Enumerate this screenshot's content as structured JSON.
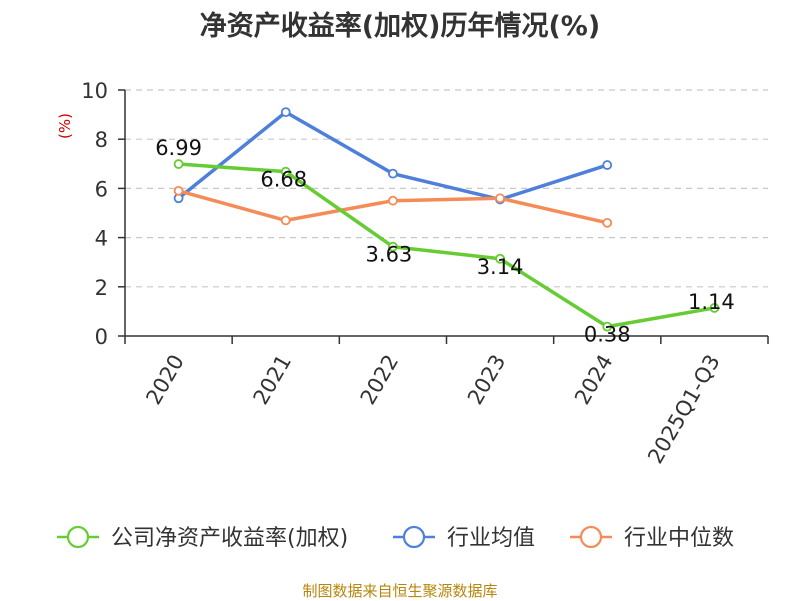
{
  "chart_data": {
    "type": "line",
    "title": "净资产收益率(加权)历年情况(%)",
    "ylabel": "(%)",
    "xlabel": "",
    "ylim": [
      0,
      10
    ],
    "yticks": [
      0,
      2,
      4,
      6,
      8,
      10
    ],
    "grid": true,
    "legend_position": "bottom",
    "categories": [
      "2020",
      "2021",
      "2022",
      "2023",
      "2024",
      "2025Q1-Q3"
    ],
    "series": [
      {
        "name": "公司净资产收益率(加权)",
        "color": "#66cc33",
        "values": [
          6.99,
          6.68,
          3.63,
          3.14,
          0.38,
          1.14
        ],
        "labels": [
          "6.99",
          "6.68",
          "3.63",
          "3.14",
          "0.38",
          "1.14"
        ]
      },
      {
        "name": "行业均值",
        "color": "#4e7fdb",
        "values": [
          5.6,
          9.1,
          6.6,
          5.55,
          6.95,
          null
        ],
        "labels": []
      },
      {
        "name": "行业中位数",
        "color": "#f58b56",
        "values": [
          5.9,
          4.7,
          5.5,
          5.6,
          4.6,
          null
        ],
        "labels": []
      }
    ]
  },
  "source": "制图数据来自恒生聚源数据库"
}
